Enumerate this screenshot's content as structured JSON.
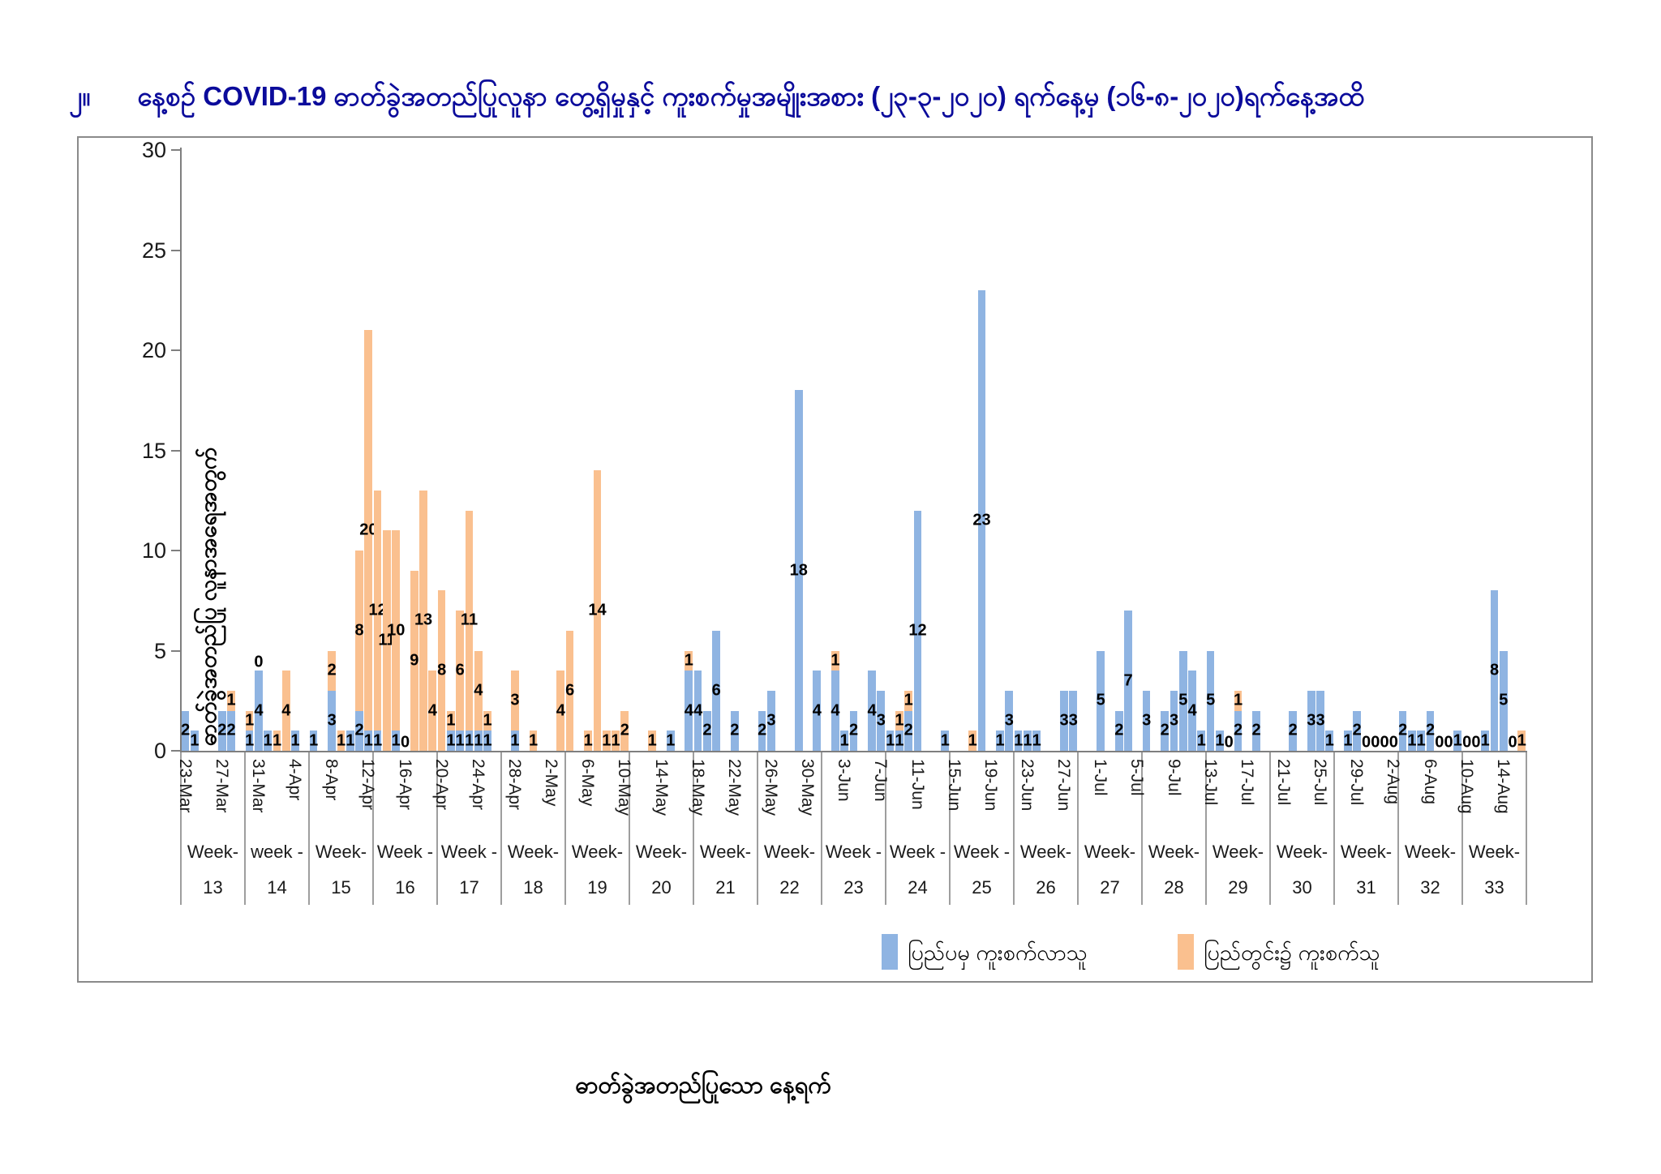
{
  "page": {
    "figure_number": "၂။",
    "title": "နေ့စဉ် COVID-19 ဓာတ်ခွဲအတည်ပြုလူနာ တွေ့ရှိမှုနှင့် ကူးစက်မှုအမျိုးအစား (၂၃-၃-၂၀၂၀) ရက်နေ့မှ (၁၆-၈-၂၀၂၀)ရက်နေ့အထိ",
    "title_color": "#0b0b9b"
  },
  "chart_data": {
    "type": "bar",
    "stacked": true,
    "grid": false,
    "legend_position": "bottom",
    "ylabel": "ဓာတ်ခွဲအတည်ပြု လူနာအရေအတွက်",
    "xlabel": "ဓာတ်ခွဲအတည်ပြုသော နေ့ရက်",
    "ylim": [
      0,
      30
    ],
    "yticks": [
      0,
      5,
      10,
      15,
      20,
      25,
      30
    ],
    "x_start_date": "23-Mar",
    "x_end_date": "16-Aug",
    "total_days": 147,
    "series": [
      {
        "name": "ပြည်ပမှ ကူးစက်လာသူ",
        "key": "b",
        "color": "#8fb4e2"
      },
      {
        "name": "ပြည်တွင်း၌ ကူးစက်သူ",
        "key": "o",
        "color": "#fac08f"
      }
    ],
    "x_tick_labels": [
      "23-Mar",
      "27-Mar",
      "31-Mar",
      "4-Apr",
      "8-Apr",
      "12-Apr",
      "16-Apr",
      "20-Apr",
      "24-Apr",
      "28-Apr",
      "2-May",
      "6-May",
      "10-May",
      "14-May",
      "18-May",
      "22-May",
      "26-May",
      "30-May",
      "3-Jun",
      "7-Jun",
      "11-Jun",
      "15-Jun",
      "19-Jun",
      "23-Jun",
      "27-Jun",
      "1-Jul",
      "5-Jul",
      "9-Jul",
      "13-Jul",
      "17-Jul",
      "21-Jul",
      "25-Jul",
      "29-Jul",
      "2-Aug",
      "6-Aug",
      "10-Aug",
      "14-Aug"
    ],
    "x_tick_day_step": 4,
    "weeks": [
      {
        "line1": "Week-",
        "line2": "13"
      },
      {
        "line1": "week -",
        "line2": "14"
      },
      {
        "line1": "Week-",
        "line2": "15"
      },
      {
        "line1": "Week -",
        "line2": "16"
      },
      {
        "line1": "Week -",
        "line2": "17"
      },
      {
        "line1": "Week-",
        "line2": "18"
      },
      {
        "line1": "Week-",
        "line2": "19"
      },
      {
        "line1": "Week-",
        "line2": "20"
      },
      {
        "line1": "Week-",
        "line2": "21"
      },
      {
        "line1": "Week-",
        "line2": "22"
      },
      {
        "line1": "Week -",
        "line2": "23"
      },
      {
        "line1": "Week -",
        "line2": "24"
      },
      {
        "line1": "Week -",
        "line2": "25"
      },
      {
        "line1": "Week-",
        "line2": "26"
      },
      {
        "line1": "Week-",
        "line2": "27"
      },
      {
        "line1": "Week-",
        "line2": "28"
      },
      {
        "line1": "Week-",
        "line2": "29"
      },
      {
        "line1": "Week-",
        "line2": "30"
      },
      {
        "line1": "Week-",
        "line2": "31"
      },
      {
        "line1": "Week-",
        "line2": "32"
      },
      {
        "line1": "Week-",
        "line2": "33"
      }
    ],
    "days": [
      {
        "d": "23-Mar",
        "i": 0,
        "b": 2,
        "o": 0
      },
      {
        "d": "24-Mar",
        "i": 1,
        "b": 1,
        "o": 0
      },
      {
        "d": "27-Mar",
        "i": 4,
        "b": 2,
        "o": 0
      },
      {
        "d": "28-Mar",
        "i": 5,
        "b": 2,
        "o": 1
      },
      {
        "d": "30-Mar",
        "i": 7,
        "b": 1,
        "o": 1
      },
      {
        "d": "31-Mar",
        "i": 8,
        "b": 4,
        "o": 0,
        "z": 1
      },
      {
        "d": "1-Apr",
        "i": 9,
        "b": 1,
        "o": 0
      },
      {
        "d": "2-Apr",
        "i": 10,
        "b": 0,
        "o": 1
      },
      {
        "d": "3-Apr",
        "i": 11,
        "b": 0,
        "o": 4
      },
      {
        "d": "4-Apr",
        "i": 12,
        "b": 1,
        "o": 0
      },
      {
        "d": "6-Apr",
        "i": 14,
        "b": 1,
        "o": 0
      },
      {
        "d": "8-Apr",
        "i": 16,
        "b": 3,
        "o": 2
      },
      {
        "d": "9-Apr",
        "i": 17,
        "b": 0,
        "o": 1
      },
      {
        "d": "10-Apr",
        "i": 18,
        "b": 1,
        "o": 0
      },
      {
        "d": "11-Apr",
        "i": 19,
        "b": 2,
        "o": 8
      },
      {
        "d": "12-Apr",
        "i": 20,
        "b": 1,
        "o": 20
      },
      {
        "d": "13-Apr",
        "i": 21,
        "b": 1,
        "o": 12
      },
      {
        "d": "14-Apr",
        "i": 22,
        "b": 0,
        "o": 11
      },
      {
        "d": "15-Apr",
        "i": 23,
        "b": 1,
        "o": 10
      },
      {
        "d": "16-Apr",
        "i": 24,
        "b": 0,
        "o": 0,
        "z": 1
      },
      {
        "d": "17-Apr",
        "i": 25,
        "b": 0,
        "o": 9
      },
      {
        "d": "18-Apr",
        "i": 26,
        "b": 0,
        "o": 13
      },
      {
        "d": "19-Apr",
        "i": 27,
        "b": 0,
        "o": 4
      },
      {
        "d": "20-Apr",
        "i": 28,
        "b": 0,
        "o": 8
      },
      {
        "d": "21-Apr",
        "i": 29,
        "b": 1,
        "o": 1
      },
      {
        "d": "22-Apr",
        "i": 30,
        "b": 1,
        "o": 6
      },
      {
        "d": "23-Apr",
        "i": 31,
        "b": 1,
        "o": 11
      },
      {
        "d": "24-Apr",
        "i": 32,
        "b": 1,
        "o": 4
      },
      {
        "d": "25-Apr",
        "i": 33,
        "b": 1,
        "o": 1
      },
      {
        "d": "28-Apr",
        "i": 36,
        "b": 1,
        "o": 3
      },
      {
        "d": "30-Apr",
        "i": 38,
        "b": 0,
        "o": 1
      },
      {
        "d": "3-May",
        "i": 41,
        "b": 0,
        "o": 4
      },
      {
        "d": "4-May",
        "i": 42,
        "b": 0,
        "o": 6
      },
      {
        "d": "6-May",
        "i": 44,
        "b": 0,
        "o": 1
      },
      {
        "d": "7-May",
        "i": 45,
        "b": 0,
        "o": 14
      },
      {
        "d": "8-May",
        "i": 46,
        "b": 0,
        "o": 1
      },
      {
        "d": "9-May",
        "i": 47,
        "b": 0,
        "o": 1
      },
      {
        "d": "10-May",
        "i": 48,
        "b": 0,
        "o": 2
      },
      {
        "d": "13-May",
        "i": 51,
        "b": 0,
        "o": 1
      },
      {
        "d": "15-May",
        "i": 53,
        "b": 1,
        "o": 0
      },
      {
        "d": "17-May",
        "i": 55,
        "b": 4,
        "o": 1
      },
      {
        "d": "18-May",
        "i": 56,
        "b": 4,
        "o": 0
      },
      {
        "d": "19-May",
        "i": 57,
        "b": 2,
        "o": 0
      },
      {
        "d": "20-May",
        "i": 58,
        "b": 6,
        "o": 0
      },
      {
        "d": "22-May",
        "i": 60,
        "b": 2,
        "o": 0
      },
      {
        "d": "25-May",
        "i": 63,
        "b": 2,
        "o": 0
      },
      {
        "d": "26-May",
        "i": 64,
        "b": 3,
        "o": 0
      },
      {
        "d": "29-May",
        "i": 67,
        "b": 18,
        "o": 0
      },
      {
        "d": "31-May",
        "i": 69,
        "b": 4,
        "o": 0
      },
      {
        "d": "2-Jun",
        "i": 71,
        "b": 4,
        "o": 1
      },
      {
        "d": "3-Jun",
        "i": 72,
        "b": 1,
        "o": 0
      },
      {
        "d": "4-Jun",
        "i": 73,
        "b": 2,
        "o": 0
      },
      {
        "d": "6-Jun",
        "i": 75,
        "b": 4,
        "o": 0
      },
      {
        "d": "7-Jun",
        "i": 76,
        "b": 3,
        "o": 0
      },
      {
        "d": "8-Jun",
        "i": 77,
        "b": 1,
        "o": 0
      },
      {
        "d": "9-Jun",
        "i": 78,
        "b": 1,
        "o": 1
      },
      {
        "d": "10-Jun",
        "i": 79,
        "b": 2,
        "o": 1
      },
      {
        "d": "11-Jun",
        "i": 80,
        "b": 12,
        "o": 0
      },
      {
        "d": "14-Jun",
        "i": 83,
        "b": 1,
        "o": 0
      },
      {
        "d": "17-Jun",
        "i": 86,
        "b": 0,
        "o": 1
      },
      {
        "d": "18-Jun",
        "i": 87,
        "b": 23,
        "o": 0
      },
      {
        "d": "20-Jun",
        "i": 89,
        "b": 1,
        "o": 0
      },
      {
        "d": "21-Jun",
        "i": 90,
        "b": 3,
        "o": 0
      },
      {
        "d": "22-Jun",
        "i": 91,
        "b": 1,
        "o": 0
      },
      {
        "d": "23-Jun",
        "i": 92,
        "b": 1,
        "o": 0
      },
      {
        "d": "24-Jun",
        "i": 93,
        "b": 1,
        "o": 0
      },
      {
        "d": "27-Jun",
        "i": 96,
        "b": 3,
        "o": 0
      },
      {
        "d": "28-Jun",
        "i": 97,
        "b": 3,
        "o": 0
      },
      {
        "d": "1-Jul",
        "i": 100,
        "b": 5,
        "o": 0
      },
      {
        "d": "3-Jul",
        "i": 102,
        "b": 2,
        "o": 0
      },
      {
        "d": "4-Jul",
        "i": 103,
        "b": 7,
        "o": 0
      },
      {
        "d": "6-Jul",
        "i": 105,
        "b": 3,
        "o": 0
      },
      {
        "d": "8-Jul",
        "i": 107,
        "b": 2,
        "o": 0
      },
      {
        "d": "9-Jul",
        "i": 108,
        "b": 3,
        "o": 0
      },
      {
        "d": "10-Jul",
        "i": 109,
        "b": 5,
        "o": 0
      },
      {
        "d": "11-Jul",
        "i": 110,
        "b": 4,
        "o": 0
      },
      {
        "d": "12-Jul",
        "i": 111,
        "b": 1,
        "o": 0
      },
      {
        "d": "13-Jul",
        "i": 112,
        "b": 5,
        "o": 0
      },
      {
        "d": "14-Jul",
        "i": 113,
        "b": 1,
        "o": 0
      },
      {
        "d": "15-Jul",
        "i": 114,
        "b": 0,
        "o": 0,
        "z": 1
      },
      {
        "d": "16-Jul",
        "i": 115,
        "b": 2,
        "o": 1
      },
      {
        "d": "18-Jul",
        "i": 117,
        "b": 2,
        "o": 0
      },
      {
        "d": "22-Jul",
        "i": 121,
        "b": 2,
        "o": 0
      },
      {
        "d": "24-Jul",
        "i": 123,
        "b": 3,
        "o": 0
      },
      {
        "d": "25-Jul",
        "i": 124,
        "b": 3,
        "o": 0
      },
      {
        "d": "26-Jul",
        "i": 125,
        "b": 1,
        "o": 0
      },
      {
        "d": "28-Jul",
        "i": 127,
        "b": 1,
        "o": 0
      },
      {
        "d": "29-Jul",
        "i": 128,
        "b": 2,
        "o": 0
      },
      {
        "d": "30-Jul",
        "i": 129,
        "b": 0,
        "o": 0,
        "z": 1
      },
      {
        "d": "31-Jul",
        "i": 130,
        "b": 0,
        "o": 0,
        "z": 1
      },
      {
        "d": "1-Aug",
        "i": 131,
        "b": 0,
        "o": 0,
        "z": 1
      },
      {
        "d": "2-Aug",
        "i": 132,
        "b": 0,
        "o": 0,
        "z": 1
      },
      {
        "d": "3-Aug",
        "i": 133,
        "b": 2,
        "o": 0
      },
      {
        "d": "4-Aug",
        "i": 134,
        "b": 1,
        "o": 0
      },
      {
        "d": "5-Aug",
        "i": 135,
        "b": 1,
        "o": 0
      },
      {
        "d": "6-Aug",
        "i": 136,
        "b": 2,
        "o": 0
      },
      {
        "d": "7-Aug",
        "i": 137,
        "b": 0,
        "o": 0,
        "z": 1
      },
      {
        "d": "8-Aug",
        "i": 138,
        "b": 0,
        "o": 0,
        "z": 1
      },
      {
        "d": "9-Aug",
        "i": 139,
        "b": 1,
        "o": 0
      },
      {
        "d": "10-Aug",
        "i": 140,
        "b": 0,
        "o": 0,
        "z": 1
      },
      {
        "d": "11-Aug",
        "i": 141,
        "b": 0,
        "o": 0,
        "z": 1
      },
      {
        "d": "12-Aug",
        "i": 142,
        "b": 1,
        "o": 0
      },
      {
        "d": "13-Aug",
        "i": 143,
        "b": 8,
        "o": 0
      },
      {
        "d": "14-Aug",
        "i": 144,
        "b": 5,
        "o": 0
      },
      {
        "d": "15-Aug",
        "i": 145,
        "b": 0,
        "o": 0,
        "z": 1
      },
      {
        "d": "16-Aug",
        "i": 146,
        "b": 0,
        "o": 1
      }
    ]
  }
}
